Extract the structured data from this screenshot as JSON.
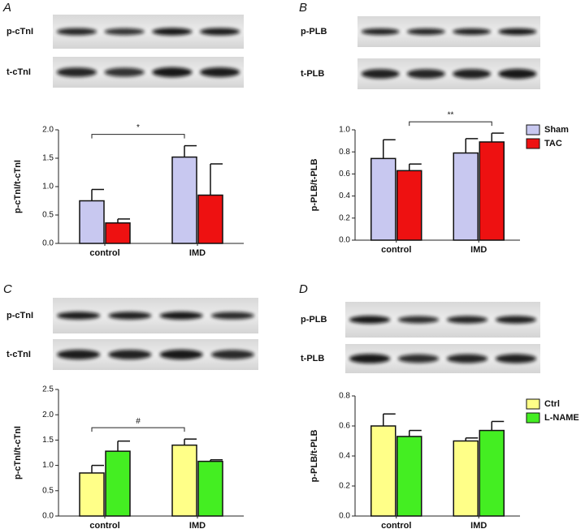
{
  "chart_data": [
    {
      "type": "bar",
      "panel": "A",
      "blot_labels": [
        "p-cTnI",
        "t-cTnI"
      ],
      "y_label": "p-cTnI/t-cTnI",
      "categories": [
        "control",
        "IMD"
      ],
      "series": [
        {
          "color": "#c8c8f0",
          "values": [
            0.75,
            1.52
          ],
          "errors": [
            0.2,
            0.2
          ]
        },
        {
          "color": "#ee1111",
          "values": [
            0.36,
            0.85
          ],
          "errors": [
            0.07,
            0.55
          ]
        }
      ],
      "ylim": [
        0,
        2
      ],
      "yticks": [
        {
          "value": 0,
          "label": "0.0"
        },
        0.5,
        {
          "value": 1,
          "label": "1.0"
        },
        1.5,
        {
          "value": 2,
          "label": "2.0"
        }
      ],
      "annotation": "*"
    },
    {
      "type": "bar",
      "panel": "B",
      "blot_labels": [
        "p-PLB",
        "t-PLB"
      ],
      "y_label": "p-PLB/t-PLB",
      "categories": [
        "control",
        "IMD"
      ],
      "series": [
        {
          "name": "Sham",
          "color": "#c8c8f0",
          "values": [
            0.74,
            0.79
          ],
          "errors": [
            0.17,
            0.13
          ]
        },
        {
          "name": "TAC",
          "color": "#ee1111",
          "values": [
            0.63,
            0.89
          ],
          "errors": [
            0.06,
            0.08
          ]
        }
      ],
      "ylim": [
        0,
        1
      ],
      "yticks": [
        {
          "value": 0,
          "label": "0.0"
        },
        0.2,
        0.4,
        0.6,
        0.8,
        {
          "value": 1,
          "label": "1.0"
        }
      ],
      "annotation": "**",
      "legend": "right"
    },
    {
      "type": "bar",
      "panel": "C",
      "blot_labels": [
        "p-cTnI",
        "t-cTnI"
      ],
      "y_label": "p-cTnI/t-cTnI",
      "categories": [
        "control",
        "IMD"
      ],
      "series": [
        {
          "color": "#ffff88",
          "values": [
            0.85,
            1.4
          ],
          "errors": [
            0.15,
            0.12
          ]
        },
        {
          "color": "#44ee22",
          "values": [
            1.28,
            1.08
          ],
          "errors": [
            0.2,
            0.03
          ]
        }
      ],
      "ylim": [
        0,
        2.5
      ],
      "yticks": [
        {
          "value": 0,
          "label": "0.0"
        },
        0.5,
        {
          "value": 1,
          "label": "1.0"
        },
        1.5,
        {
          "value": 2,
          "label": "2.0"
        },
        2.5
      ],
      "annotation": "#"
    },
    {
      "type": "bar",
      "panel": "D",
      "blot_labels": [
        "p-PLB",
        "t-PLB"
      ],
      "y_label": "p-PLB/t-PLB",
      "categories": [
        "control",
        "IMD"
      ],
      "series": [
        {
          "name": "Ctrl",
          "color": "#ffff88",
          "values": [
            0.6,
            0.5
          ],
          "errors": [
            0.08,
            0.02
          ]
        },
        {
          "name": "L-NAME",
          "color": "#44ee22",
          "values": [
            0.53,
            0.57
          ],
          "errors": [
            0.04,
            0.06
          ]
        }
      ],
      "ylim": [
        0,
        0.8
      ],
      "yticks": [
        {
          "value": 0,
          "label": "0.0"
        },
        0.2,
        0.4,
        0.6,
        0.8
      ],
      "legend": "right"
    }
  ]
}
